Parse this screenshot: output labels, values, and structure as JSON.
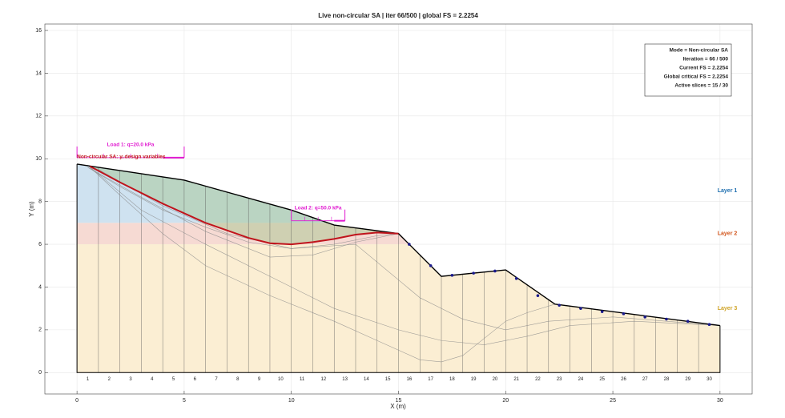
{
  "chart_data": {
    "type": "slope",
    "title": "Live non-circular SA | iter 66/500 | global FS = 2.2254",
    "xlabel": "X (m)",
    "ylabel": "Y (m)",
    "xlim": [
      -1.5,
      31.5
    ],
    "ylim": [
      -1,
      16.3
    ],
    "xticks": [
      0,
      5,
      10,
      15,
      20,
      25,
      30
    ],
    "yticks": [
      0,
      2,
      4,
      6,
      8,
      10,
      12,
      14,
      16
    ],
    "grid": true,
    "layers": [
      {
        "name": "Layer 1",
        "bottom": 7,
        "top": 10,
        "fill": "#cfe2f0",
        "label_color": "#1f6fb0"
      },
      {
        "name": "Layer 2",
        "bottom": 6,
        "top": 7,
        "fill": "#f6dad3",
        "label_color": "#d2561c"
      },
      {
        "name": "Layer 3",
        "bottom": 0,
        "top": 6,
        "fill": "#fbeed3",
        "label_color": "#cfa326"
      }
    ],
    "surface": {
      "color": "#000000",
      "x": [
        0,
        5,
        10,
        12,
        15,
        17,
        20,
        22.3,
        30
      ],
      "y": [
        9.75,
        9.0,
        7.6,
        6.9,
        6.5,
        4.5,
        4.8,
        3.2,
        2.2
      ]
    },
    "slip": {
      "color": "#c0141c",
      "x": [
        0.6,
        2,
        4,
        6,
        8,
        9,
        10,
        11,
        12,
        13,
        14,
        15
      ],
      "y": [
        9.65,
        8.9,
        7.9,
        7.0,
        6.3,
        6.05,
        6.0,
        6.1,
        6.25,
        6.45,
        6.55,
        6.5
      ]
    },
    "mass_color": "#9fc48a",
    "trials": [
      {
        "color": "#8a8a8a",
        "x": [
          0.5,
          2,
          4,
          6,
          8,
          10,
          12,
          14,
          15
        ],
        "y": [
          9.6,
          8.7,
          7.6,
          6.8,
          6.1,
          5.8,
          6.0,
          6.4,
          6.5
        ]
      },
      {
        "color": "#8a8a8a",
        "x": [
          0.5,
          3,
          6,
          9,
          11,
          13,
          15
        ],
        "y": [
          9.6,
          8.2,
          6.6,
          5.4,
          5.5,
          6.1,
          6.5
        ]
      },
      {
        "color": "#8a8a8a",
        "x": [
          0.5,
          2,
          4,
          6,
          9,
          12,
          14,
          16,
          17,
          18,
          19,
          20,
          21,
          22.3
        ],
        "y": [
          9.7,
          8.3,
          6.5,
          5.0,
          3.6,
          2.4,
          1.5,
          0.6,
          0.5,
          0.8,
          1.6,
          2.4,
          2.8,
          3.2
        ]
      },
      {
        "color": "#8a8a8a",
        "x": [
          0.5,
          3,
          6,
          9,
          12,
          15,
          17,
          19,
          21,
          23,
          26,
          30
        ],
        "y": [
          9.7,
          7.6,
          6.0,
          4.5,
          3.0,
          2.0,
          1.5,
          1.3,
          1.7,
          2.2,
          2.4,
          2.2
        ]
      },
      {
        "color": "#8a8a8a",
        "x": [
          1,
          4,
          7,
          10,
          13,
          16,
          18,
          20,
          22,
          25,
          30
        ],
        "y": [
          9.5,
          7.8,
          6.5,
          5.8,
          6.0,
          3.5,
          2.5,
          2.0,
          2.4,
          2.6,
          2.2
        ]
      }
    ],
    "nodes": {
      "color": "#1a1a8c",
      "x": [
        15.5,
        16.5,
        17.5,
        18.5,
        19.5,
        20.5,
        21.5,
        22.5,
        23.5,
        24.5,
        25.5,
        26.5,
        27.5,
        28.5,
        29.5
      ],
      "y": [
        6.0,
        5.0,
        4.55,
        4.65,
        4.75,
        4.4,
        3.6,
        3.15,
        3.0,
        2.85,
        2.75,
        2.6,
        2.5,
        2.4,
        2.25
      ]
    },
    "slice_edges": [
      0,
      1,
      2,
      3,
      4,
      5,
      6,
      7,
      8,
      9,
      10,
      11,
      12,
      13,
      14,
      15,
      16,
      17,
      18,
      19,
      20,
      21,
      22,
      23,
      24,
      25,
      26,
      27,
      28,
      29,
      30
    ],
    "slice_labels": [
      1,
      2,
      3,
      4,
      5,
      6,
      7,
      8,
      9,
      10,
      11,
      12,
      13,
      14,
      15,
      16,
      17,
      18,
      19,
      20,
      21,
      22,
      23,
      24,
      25,
      26,
      27,
      28,
      29,
      30
    ],
    "loads": [
      {
        "label": "Load 1: q=20.0 kPa",
        "x": [
          0,
          5
        ],
        "y": 10.05,
        "color": "#e01ad0"
      },
      {
        "label": "Load 2: q=50.0 kPa",
        "x": [
          10,
          12.5
        ],
        "y": 7.1,
        "color": "#e01ad0"
      }
    ],
    "annotation": "Non-circular SA: yᵢ design variables",
    "info_box": [
      "Mode = Non-circular SA",
      "Iteration = 66 / 500",
      "Current FS = 2.2254",
      "Global critical FS = 2.2254",
      "Active slices = 15 / 30"
    ]
  }
}
